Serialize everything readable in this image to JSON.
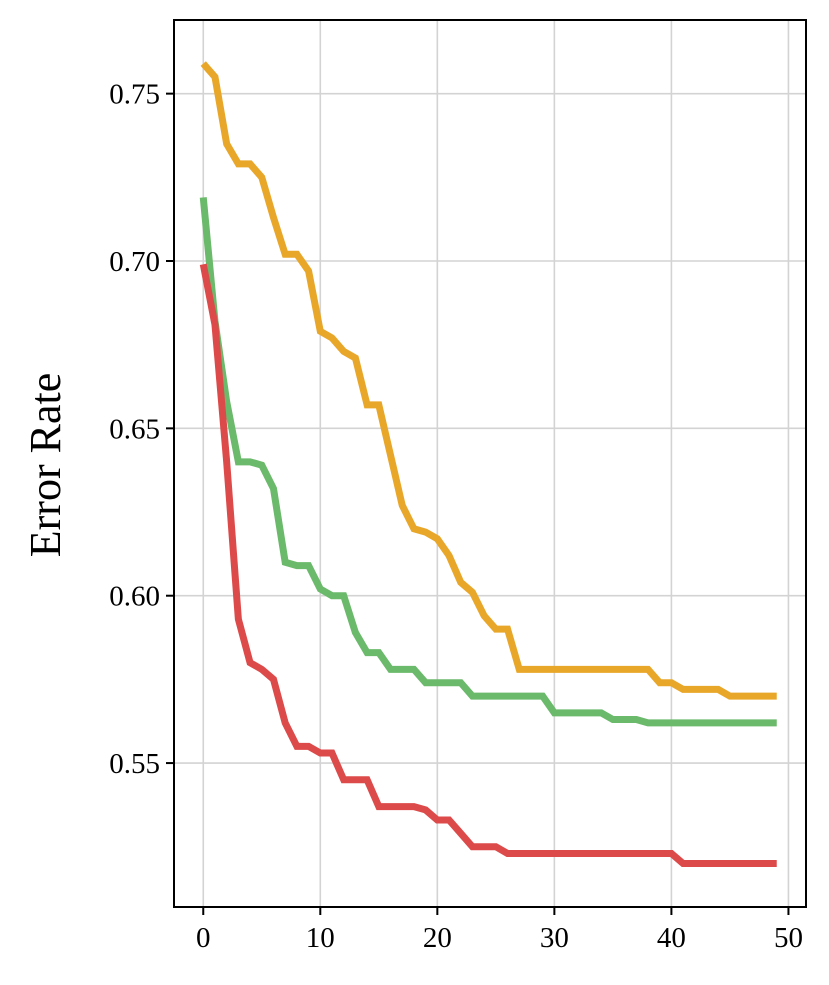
{
  "chart_data": {
    "type": "line",
    "title": "",
    "xlabel": "",
    "ylabel": "Error Rate",
    "xlim": [
      -2.5,
      51.5
    ],
    "ylim": [
      0.507,
      0.772
    ],
    "xticks": [
      0,
      10,
      20,
      30,
      40,
      50
    ],
    "xtick_labels": [
      "0",
      "10",
      "20",
      "30",
      "40",
      "50"
    ],
    "yticks": [
      0.55,
      0.6,
      0.65,
      0.7,
      0.75
    ],
    "ytick_labels": [
      "0.55",
      "0.60",
      "0.65",
      "0.70",
      "0.75"
    ],
    "grid": true,
    "legend": "none",
    "x": [
      0,
      1,
      2,
      3,
      4,
      5,
      6,
      7,
      8,
      9,
      10,
      11,
      12,
      13,
      14,
      15,
      16,
      17,
      18,
      19,
      20,
      21,
      22,
      23,
      24,
      25,
      26,
      27,
      28,
      29,
      30,
      31,
      32,
      33,
      34,
      35,
      36,
      37,
      38,
      39,
      40,
      41,
      42,
      43,
      44,
      45,
      46,
      47,
      48,
      49
    ],
    "series": [
      {
        "color": "#e9a72a",
        "values": [
          0.759,
          0.755,
          0.735,
          0.729,
          0.729,
          0.725,
          0.713,
          0.702,
          0.702,
          0.697,
          0.679,
          0.677,
          0.673,
          0.671,
          0.657,
          0.657,
          0.642,
          0.627,
          0.62,
          0.619,
          0.617,
          0.612,
          0.604,
          0.601,
          0.594,
          0.59,
          0.59,
          0.578,
          0.578,
          0.578,
          0.578,
          0.578,
          0.578,
          0.578,
          0.578,
          0.578,
          0.578,
          0.578,
          0.578,
          0.574,
          0.574,
          0.572,
          0.572,
          0.572,
          0.572,
          0.57,
          0.57,
          0.57,
          0.57,
          0.57
        ]
      },
      {
        "color": "#6bb96b",
        "values": [
          0.719,
          0.682,
          0.658,
          0.64,
          0.64,
          0.639,
          0.632,
          0.61,
          0.609,
          0.609,
          0.602,
          0.6,
          0.6,
          0.589,
          0.583,
          0.583,
          0.578,
          0.578,
          0.578,
          0.574,
          0.574,
          0.574,
          0.574,
          0.57,
          0.57,
          0.57,
          0.57,
          0.57,
          0.57,
          0.57,
          0.565,
          0.565,
          0.565,
          0.565,
          0.565,
          0.563,
          0.563,
          0.563,
          0.562,
          0.562,
          0.562,
          0.562,
          0.562,
          0.562,
          0.562,
          0.562,
          0.562,
          0.562,
          0.562,
          0.562
        ]
      },
      {
        "color": "#dd4a4a",
        "values": [
          0.699,
          0.681,
          0.64,
          0.593,
          0.58,
          0.578,
          0.575,
          0.562,
          0.555,
          0.555,
          0.553,
          0.553,
          0.545,
          0.545,
          0.545,
          0.537,
          0.537,
          0.537,
          0.537,
          0.536,
          0.533,
          0.533,
          0.529,
          0.525,
          0.525,
          0.525,
          0.523,
          0.523,
          0.523,
          0.523,
          0.523,
          0.523,
          0.523,
          0.523,
          0.523,
          0.523,
          0.523,
          0.523,
          0.523,
          0.523,
          0.523,
          0.52,
          0.52,
          0.52,
          0.52,
          0.52,
          0.52,
          0.52,
          0.52,
          0.52
        ]
      }
    ]
  }
}
